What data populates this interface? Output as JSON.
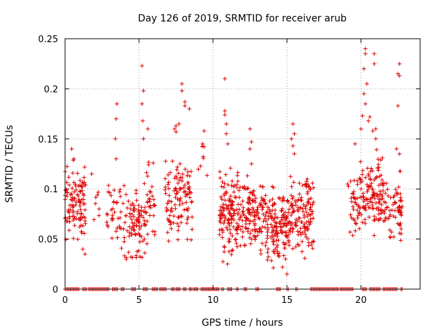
{
  "chart_data": {
    "type": "scatter",
    "title": "Day 126 of 2019, SRMTID for receiver arub",
    "xlabel": "GPS time / hours",
    "ylabel": "SRMTID / TECUs",
    "xlim": [
      0,
      24
    ],
    "ylim": [
      0,
      0.25
    ],
    "xticks": [
      0,
      5,
      10,
      15,
      20
    ],
    "yticks": [
      0,
      0.05,
      0.1,
      0.15,
      0.2,
      0.25
    ],
    "xtick_labels": [
      "0",
      "5",
      "10",
      "15",
      "20"
    ],
    "ytick_labels": [
      "0",
      "0.05",
      "0.1",
      "0.15",
      "0.2",
      "0.25"
    ],
    "grid": true,
    "marker": "+",
    "series": [
      {
        "name": "SRMTID",
        "color": "#dd0000",
        "clusters": [
          {
            "x0": 0.0,
            "x1": 1.4,
            "ymin": 0.035,
            "ymax": 0.145,
            "n": 110,
            "extras": [
              [
                0.45,
                0.14
              ],
              [
                0.6,
                0.13
              ],
              [
                1.35,
                0.035
              ],
              [
                1.2,
                0.04
              ]
            ]
          },
          {
            "x0": 1.5,
            "x1": 2.4,
            "ymin": 0.055,
            "ymax": 0.115,
            "n": 6,
            "extras": [
              [
                1.8,
                0.115
              ],
              [
                2.3,
                0.08
              ]
            ]
          },
          {
            "x0": 2.8,
            "x1": 4.4,
            "ymin": 0.02,
            "ymax": 0.125,
            "n": 55,
            "extras": [
              [
                3.5,
                0.185
              ],
              [
                3.45,
                0.17
              ],
              [
                3.4,
                0.15
              ],
              [
                3.45,
                0.13
              ]
            ]
          },
          {
            "x0": 4.4,
            "x1": 5.4,
            "ymin": 0.02,
            "ymax": 0.115,
            "n": 70,
            "extras": [
              [
                5.2,
                0.223
              ],
              [
                5.3,
                0.198
              ],
              [
                5.2,
                0.185
              ],
              [
                5.25,
                0.168
              ],
              [
                5.3,
                0.15
              ]
            ]
          },
          {
            "x0": 5.4,
            "x1": 6.1,
            "ymin": 0.025,
            "ymax": 0.14,
            "n": 35,
            "extras": [
              [
                5.6,
                0.16
              ]
            ]
          },
          {
            "x0": 6.7,
            "x1": 8.6,
            "ymin": 0.03,
            "ymax": 0.15,
            "n": 110,
            "extras": [
              [
                7.4,
                0.16
              ],
              [
                7.5,
                0.163
              ],
              [
                7.5,
                0.157
              ],
              [
                7.7,
                0.165
              ],
              [
                8.1,
                0.187
              ],
              [
                8.1,
                0.183
              ],
              [
                7.9,
                0.205
              ],
              [
                7.9,
                0.198
              ],
              [
                8.4,
                0.18
              ]
            ]
          },
          {
            "x0": 9.0,
            "x1": 9.6,
            "ymin": 0.1,
            "ymax": 0.16,
            "n": 6,
            "extras": [
              [
                9.4,
                0.158
              ],
              [
                9.3,
                0.145
              ],
              [
                9.4,
                0.142
              ]
            ]
          },
          {
            "x0": 10.4,
            "x1": 13.5,
            "ymin": 0.02,
            "ymax": 0.13,
            "n": 260,
            "extras": [
              [
                10.8,
                0.21
              ],
              [
                10.8,
                0.178
              ],
              [
                10.8,
                0.174
              ],
              [
                10.9,
                0.165
              ],
              [
                10.9,
                0.155
              ],
              [
                11.0,
                0.145
              ],
              [
                12.5,
                0.16
              ],
              [
                12.6,
                0.147
              ],
              [
                12.5,
                0.14
              ]
            ]
          },
          {
            "x0": 13.5,
            "x1": 15.2,
            "ymin": 0.015,
            "ymax": 0.11,
            "n": 150,
            "extras": [
              [
                14.9,
                0.03
              ],
              [
                14.7,
                0.022
              ],
              [
                15.0,
                0.015
              ]
            ]
          },
          {
            "x0": 15.2,
            "x1": 16.8,
            "ymin": 0.02,
            "ymax": 0.13,
            "n": 130,
            "extras": [
              [
                15.4,
                0.165
              ],
              [
                15.5,
                0.155
              ],
              [
                15.3,
                0.15
              ],
              [
                15.4,
                0.143
              ],
              [
                15.5,
                0.135
              ]
            ]
          },
          {
            "x0": 18.9,
            "x1": 19.2,
            "ymin": 0.1,
            "ymax": 0.11,
            "n": 1,
            "extras": [
              [
                19.1,
                0.105
              ]
            ]
          },
          {
            "x0": 19.2,
            "x1": 20.3,
            "ymin": 0.03,
            "ymax": 0.135,
            "n": 60,
            "extras": [
              [
                19.6,
                0.145
              ],
              [
                20.1,
                0.173
              ],
              [
                20.0,
                0.16
              ]
            ]
          },
          {
            "x0": 20.3,
            "x1": 21.5,
            "ymin": 0.04,
            "ymax": 0.15,
            "n": 95,
            "extras": [
              [
                20.3,
                0.24
              ],
              [
                20.3,
                0.235
              ],
              [
                20.2,
                0.22
              ],
              [
                20.2,
                0.195
              ],
              [
                20.4,
                0.205
              ],
              [
                20.5,
                0.168
              ],
              [
                20.6,
                0.172
              ],
              [
                20.8,
                0.158
              ],
              [
                20.9,
                0.235
              ],
              [
                20.9,
                0.225
              ],
              [
                21.0,
                0.15
              ],
              [
                21.0,
                0.16
              ],
              [
                20.3,
                0.185
              ]
            ]
          },
          {
            "x0": 21.5,
            "x1": 22.8,
            "ymin": 0.03,
            "ymax": 0.14,
            "n": 70,
            "extras": [
              [
                22.6,
                0.225
              ],
              [
                22.5,
                0.215
              ],
              [
                22.6,
                0.213
              ],
              [
                22.5,
                0.183
              ],
              [
                22.4,
                0.14
              ],
              [
                22.6,
                0.135
              ]
            ]
          }
        ],
        "zero_segments": [
          [
            0.0,
            1.0
          ],
          [
            1.2,
            1.5
          ],
          [
            1.6,
            3.0
          ],
          [
            3.2,
            3.6
          ],
          [
            3.8,
            4.0
          ],
          [
            4.5,
            4.8
          ],
          [
            5.3,
            5.6
          ],
          [
            5.9,
            6.3
          ],
          [
            6.4,
            6.9
          ],
          [
            7.2,
            7.4
          ],
          [
            7.5,
            7.8
          ],
          [
            8.0,
            8.2
          ],
          [
            8.4,
            8.6
          ],
          [
            8.7,
            9.0
          ],
          [
            9.2,
            10.4
          ],
          [
            10.6,
            10.7
          ],
          [
            11.0,
            11.3
          ],
          [
            11.6,
            11.7
          ],
          [
            12.1,
            12.3
          ],
          [
            12.9,
            13.1
          ],
          [
            14.3,
            14.6
          ],
          [
            15.0,
            15.1
          ],
          [
            15.6,
            15.7
          ],
          [
            16.6,
            18.5
          ],
          [
            18.6,
            19.5
          ],
          [
            20.1,
            20.4
          ],
          [
            20.6,
            21.3
          ],
          [
            21.5,
            22.5
          ],
          [
            22.7,
            22.8
          ]
        ]
      }
    ]
  }
}
